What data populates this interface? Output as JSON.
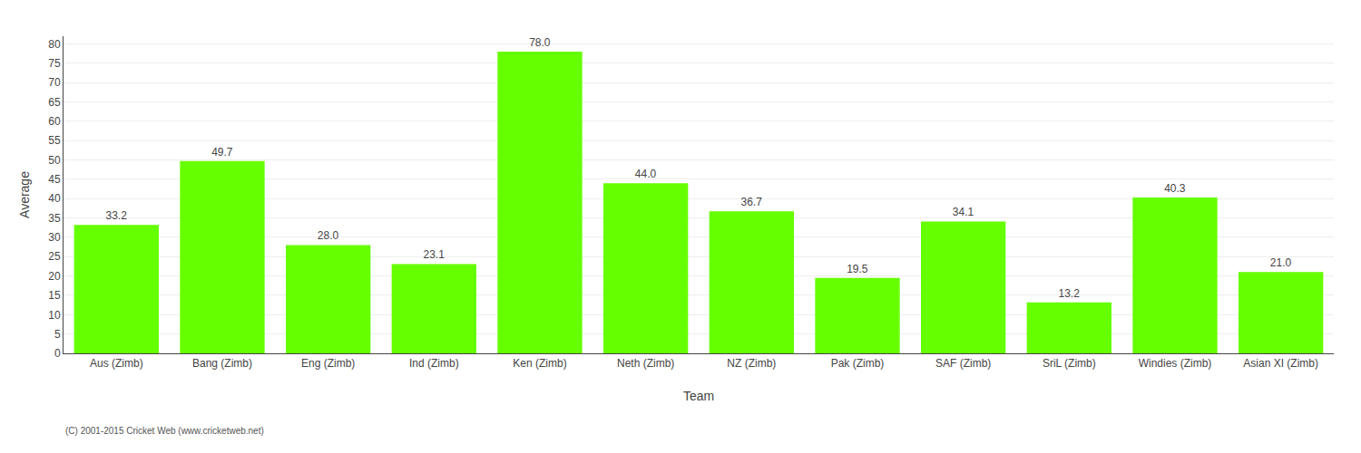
{
  "chart_data": {
    "type": "bar",
    "categories": [
      "Aus (Zimb)",
      "Bang (Zimb)",
      "Eng (Zimb)",
      "Ind (Zimb)",
      "Ken (Zimb)",
      "Neth (Zimb)",
      "NZ (Zimb)",
      "Pak (Zimb)",
      "SAF (Zimb)",
      "SriL (Zimb)",
      "Windies (Zimb)",
      "Asian XI (Zimb)"
    ],
    "values": [
      33.2,
      49.7,
      28.0,
      23.1,
      78.0,
      44.0,
      36.7,
      19.5,
      34.1,
      13.2,
      40.3,
      21.0
    ],
    "value_labels": [
      "33.2",
      "49.7",
      "28.0",
      "23.1",
      "78.0",
      "44.0",
      "36.7",
      "19.5",
      "34.1",
      "13.2",
      "40.3",
      "21.0"
    ],
    "data_labels": true,
    "color": "#66ff00",
    "xlabel": "Team",
    "ylabel": "Average",
    "ylim": [
      0,
      82
    ],
    "yticks": [
      0,
      5,
      10,
      15,
      20,
      25,
      30,
      35,
      40,
      45,
      50,
      55,
      60,
      65,
      70,
      75,
      80
    ],
    "grid": true,
    "annotations": [
      "(C) 2001-2015 Cricket Web (www.cricketweb.net)"
    ]
  }
}
